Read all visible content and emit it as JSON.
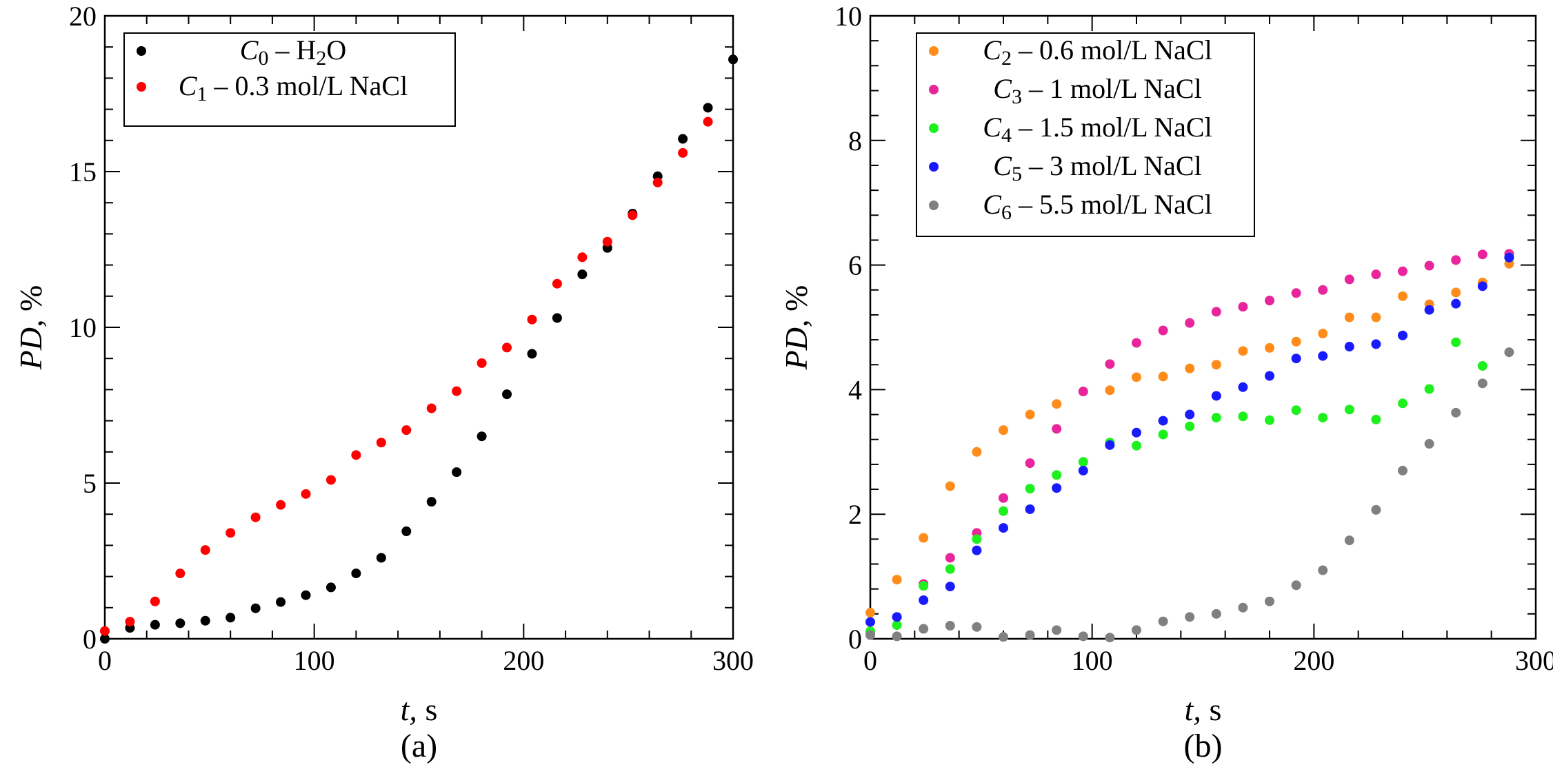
{
  "chart_data": [
    {
      "type": "scatter",
      "panel_label": "(a)",
      "xlabel_var": "t,",
      "xlabel_unit": "s",
      "ylabel_var": "PD,",
      "ylabel_unit": "%",
      "xlim": [
        0,
        300
      ],
      "ylim": [
        0,
        20
      ],
      "xticks": [
        0,
        100,
        200,
        300
      ],
      "yticks": [
        0,
        5,
        10,
        15,
        20
      ],
      "legend_position": "top-left",
      "series": [
        {
          "name": "C0 – H2O",
          "label_symbol": "C",
          "label_sub": "0",
          "label_text_a": " – H",
          "label_text_sub": "2",
          "label_text_b": "O",
          "color": "#000000",
          "x": [
            0,
            12,
            24,
            36,
            48,
            60,
            72,
            84,
            96,
            108,
            120,
            132,
            144,
            156,
            168,
            180,
            192,
            204,
            216,
            228,
            240,
            252,
            264,
            276,
            288,
            300
          ],
          "y": [
            0.0,
            0.35,
            0.45,
            0.5,
            0.58,
            0.68,
            0.98,
            1.18,
            1.4,
            1.65,
            2.1,
            2.6,
            3.45,
            4.4,
            5.35,
            6.5,
            7.85,
            9.15,
            10.3,
            11.7,
            12.55,
            13.65,
            14.85,
            16.05,
            17.05,
            18.6
          ]
        },
        {
          "name": "C1 – 0.3 mol/L NaCl",
          "label_symbol": "C",
          "label_sub": "1",
          "label_text": " – 0.3 mol/L NaCl",
          "color": "#ff0000",
          "x": [
            0,
            12,
            24,
            36,
            48,
            60,
            72,
            84,
            96,
            108,
            120,
            132,
            144,
            156,
            168,
            180,
            192,
            204,
            216,
            228,
            240,
            252,
            264,
            276,
            288
          ],
          "y": [
            0.25,
            0.55,
            1.2,
            2.1,
            2.85,
            3.4,
            3.9,
            4.3,
            4.65,
            5.1,
            5.9,
            6.3,
            6.7,
            7.4,
            7.95,
            8.85,
            9.35,
            10.25,
            11.4,
            12.25,
            12.75,
            13.6,
            14.65,
            15.6,
            16.6
          ]
        }
      ]
    },
    {
      "type": "scatter",
      "panel_label": "(b)",
      "xlabel_var": "t,",
      "xlabel_unit": "s",
      "ylabel_var": "PD,",
      "ylabel_unit": "%",
      "xlim": [
        0,
        300
      ],
      "ylim": [
        0,
        10
      ],
      "xticks": [
        0,
        100,
        200,
        300
      ],
      "yticks": [
        0,
        2,
        4,
        6,
        8,
        10
      ],
      "legend_position": "top-left",
      "series": [
        {
          "name": "C2 – 0.6 mol/L NaCl",
          "label_symbol": "C",
          "label_sub": "2",
          "label_text": " – 0.6 mol/L NaCl",
          "color": "#ff8c1a",
          "x": [
            0,
            12,
            24,
            36,
            48,
            60,
            72,
            84,
            96,
            108,
            120,
            132,
            144,
            156,
            168,
            180,
            192,
            204,
            216,
            228,
            240,
            252,
            264,
            276,
            288
          ],
          "y": [
            0.42,
            0.95,
            1.62,
            2.45,
            3.0,
            3.35,
            3.6,
            3.77,
            3.97,
            3.99,
            4.2,
            4.21,
            4.34,
            4.4,
            4.62,
            4.67,
            4.77,
            4.9,
            5.16,
            5.16,
            5.5,
            5.37,
            5.56,
            5.72,
            6.02
          ]
        },
        {
          "name": "C3 – 1 mol/L NaCl",
          "label_symbol": "C",
          "label_sub": "3",
          "label_text": " – 1 mol/L NaCl",
          "color": "#e8259a",
          "x": [
            0,
            12,
            24,
            36,
            48,
            60,
            72,
            84,
            96,
            108,
            120,
            132,
            144,
            156,
            168,
            180,
            192,
            204,
            216,
            228,
            240,
            252,
            264,
            276,
            288
          ],
          "y": [
            0.08,
            0.35,
            0.88,
            1.3,
            1.7,
            2.26,
            2.82,
            3.37,
            3.97,
            4.41,
            4.75,
            4.95,
            5.07,
            5.25,
            5.33,
            5.43,
            5.55,
            5.6,
            5.77,
            5.85,
            5.9,
            5.99,
            6.08,
            6.17,
            6.18
          ]
        },
        {
          "name": "C4 – 1.5 mol/L NaCl",
          "label_symbol": "C",
          "label_sub": "4",
          "label_text": " – 1.5 mol/L NaCl",
          "color": "#1ef01e",
          "x": [
            0,
            12,
            24,
            36,
            48,
            60,
            72,
            84,
            96,
            108,
            120,
            132,
            144,
            156,
            168,
            180,
            192,
            204,
            216,
            228,
            240,
            252,
            264,
            276,
            288
          ],
          "y": [
            0.12,
            0.22,
            0.85,
            1.12,
            1.6,
            2.05,
            2.41,
            2.63,
            2.84,
            3.15,
            3.1,
            3.28,
            3.41,
            3.55,
            3.57,
            3.51,
            3.67,
            3.55,
            3.68,
            3.52,
            3.78,
            4.01,
            4.76,
            4.38,
            6.12
          ]
        },
        {
          "name": "C5 – 3 mol/L NaCl",
          "label_symbol": "C",
          "label_sub": "5",
          "label_text": " – 3 mol/L NaCl",
          "color": "#1a1aff",
          "x": [
            0,
            12,
            24,
            36,
            48,
            60,
            72,
            84,
            96,
            108,
            120,
            132,
            144,
            156,
            168,
            180,
            192,
            204,
            216,
            228,
            240,
            252,
            264,
            276,
            288
          ],
          "y": [
            0.27,
            0.35,
            0.62,
            0.84,
            1.42,
            1.78,
            2.08,
            2.42,
            2.7,
            3.11,
            3.31,
            3.5,
            3.6,
            3.9,
            4.04,
            4.22,
            4.5,
            4.54,
            4.69,
            4.73,
            4.87,
            5.28,
            5.38,
            5.66,
            6.12
          ]
        },
        {
          "name": "C6 – 5.5 mol/L NaCl",
          "label_symbol": "C",
          "label_sub": "6",
          "label_text": " – 5.5 mol/L NaCl",
          "color": "#808080",
          "x": [
            0,
            12,
            24,
            36,
            48,
            60,
            72,
            84,
            96,
            108,
            120,
            132,
            144,
            156,
            168,
            180,
            192,
            204,
            216,
            228,
            240,
            252,
            264,
            276,
            288
          ],
          "y": [
            0.06,
            0.04,
            0.16,
            0.21,
            0.19,
            0.03,
            0.06,
            0.14,
            0.04,
            0.02,
            0.14,
            0.28,
            0.35,
            0.4,
            0.5,
            0.6,
            0.86,
            1.1,
            1.58,
            2.07,
            2.7,
            3.13,
            3.63,
            4.1,
            4.6
          ]
        }
      ]
    }
  ]
}
